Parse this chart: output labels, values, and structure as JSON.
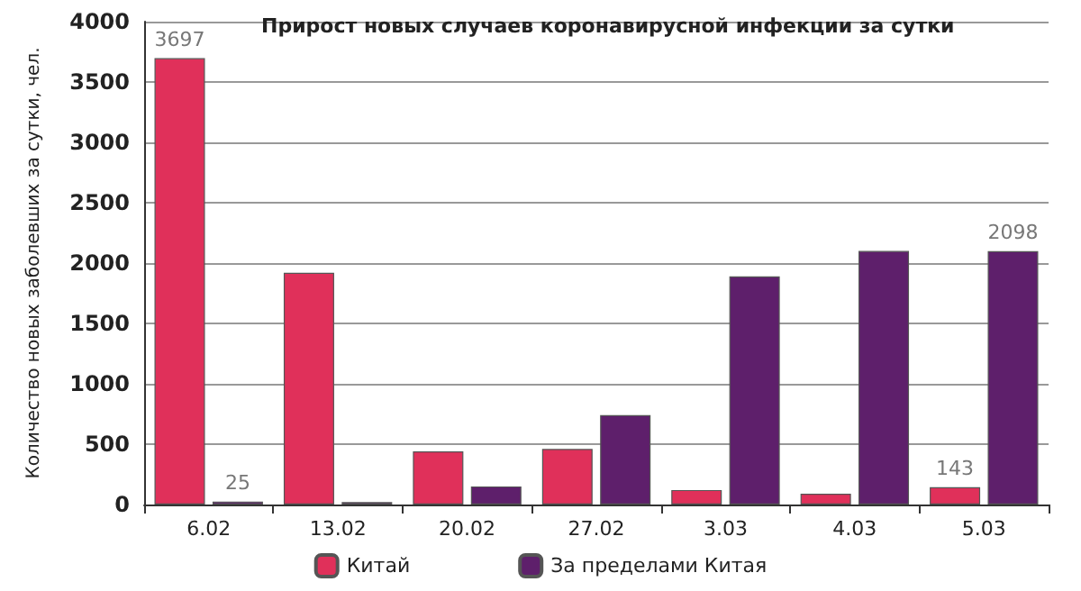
{
  "chart_data": {
    "type": "bar",
    "title": "Прирост новых случаев коронавирусной инфекции за сутки",
    "ylabel": "Количество новых заболевших за сутки, чел.",
    "categories": [
      "6.02",
      "13.02",
      "20.02",
      "27.02",
      "3.03",
      "4.03",
      "5.03"
    ],
    "series": [
      {
        "name": "Китай",
        "color": "#e0305a",
        "values": [
          3697,
          1920,
          440,
          460,
          120,
          90,
          143
        ],
        "value_labels": [
          "3697",
          null,
          null,
          null,
          null,
          null,
          "143"
        ]
      },
      {
        "name": "За пределами Китая",
        "color": "#5e1f6b",
        "values": [
          25,
          20,
          150,
          740,
          1890,
          2100,
          2098
        ],
        "value_labels": [
          "25",
          null,
          null,
          null,
          null,
          null,
          "2098"
        ]
      }
    ],
    "ylim": [
      0,
      4000
    ],
    "yticks": [
      0,
      500,
      1000,
      1500,
      2000,
      2500,
      3000,
      3500,
      4000
    ],
    "grid": "y",
    "legend": "bottom"
  }
}
